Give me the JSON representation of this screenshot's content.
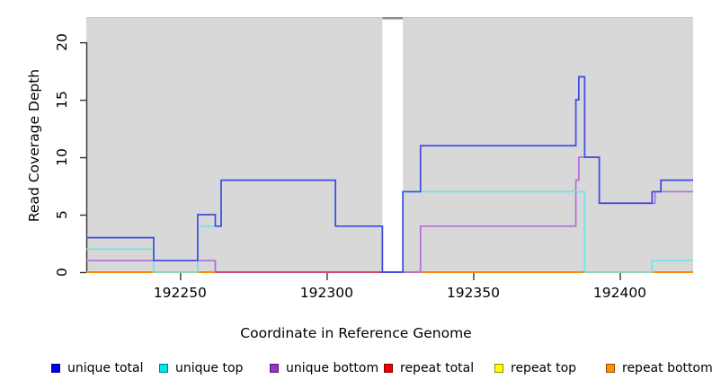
{
  "chart_data": {
    "type": "line",
    "step": true,
    "xlabel": "Coordinate in Reference Genome",
    "ylabel": "Read Coverage Depth",
    "xlim": [
      192218,
      192425
    ],
    "ylim": [
      0,
      22.2
    ],
    "x_ticks": {
      "values": [
        192250,
        192300,
        192350,
        192400
      ],
      "labels": [
        "192250",
        "192300",
        "192350",
        "192400"
      ]
    },
    "y_ticks": {
      "values": [
        0,
        5,
        10,
        15,
        20
      ],
      "labels": [
        "0",
        "5",
        "10",
        "15",
        "20"
      ]
    },
    "plot_bg": "#D8D8D8",
    "top_border_color": "#C8C8C8",
    "axis_color": "#333333",
    "gap_band": {
      "from": 192319,
      "to": 192326,
      "color": "#FFFFFF",
      "notch_color": "#8E8E8E"
    },
    "series": [
      {
        "name": "unique total",
        "legend_color": "#0000EE",
        "line_color": "#3D4BE0",
        "steps": [
          [
            192218,
            3
          ],
          [
            192241,
            1
          ],
          [
            192256,
            5
          ],
          [
            192262,
            4
          ],
          [
            192264,
            8
          ],
          [
            192303,
            4
          ],
          [
            192319,
            0
          ],
          [
            192326,
            7
          ],
          [
            192332,
            11
          ],
          [
            192385,
            15
          ],
          [
            192386,
            17
          ],
          [
            192388,
            10
          ],
          [
            192393,
            6
          ],
          [
            192411,
            7
          ],
          [
            192414,
            8
          ],
          [
            192425,
            8
          ]
        ]
      },
      {
        "name": "unique top",
        "legend_color": "#00E5EE",
        "line_color": "#6FE3EA",
        "steps": [
          [
            192218,
            2
          ],
          [
            192241,
            0
          ],
          [
            192256,
            4
          ],
          [
            192264,
            8
          ],
          [
            192303,
            4
          ],
          [
            192319,
            0
          ],
          [
            192326,
            7
          ],
          [
            192388,
            0
          ],
          [
            192411,
            1
          ],
          [
            192425,
            1
          ]
        ]
      },
      {
        "name": "unique bottom",
        "legend_color": "#9932CC",
        "line_color": "#B16EDC",
        "steps": [
          [
            192218,
            1
          ],
          [
            192262,
            0
          ],
          [
            192332,
            4
          ],
          [
            192385,
            8
          ],
          [
            192386,
            10
          ],
          [
            192393,
            6
          ],
          [
            192412,
            7
          ],
          [
            192425,
            7
          ]
        ]
      },
      {
        "name": "repeat total",
        "legend_color": "#EE0000",
        "line_color": "#DD2222",
        "steps": [
          [
            192218,
            0
          ],
          [
            192425,
            0
          ]
        ]
      },
      {
        "name": "repeat top",
        "legend_color": "#FFFF00",
        "line_color": "#EEDD00",
        "steps": [
          [
            192218,
            0
          ],
          [
            192425,
            0
          ]
        ]
      },
      {
        "name": "repeat bottom",
        "legend_color": "#FF9100",
        "line_color": "#FF9100",
        "steps": [
          [
            192218,
            0
          ],
          [
            192425,
            0
          ]
        ]
      }
    ],
    "draw_order": [
      4,
      3,
      5,
      2,
      1
    ],
    "top_series": 0,
    "baseline_overlays": [
      {
        "from": 192241,
        "to": 192256,
        "color": "#8FD9B0"
      },
      {
        "from": 192262,
        "to": 192326,
        "color": "#D2406E"
      },
      {
        "from": 192388,
        "to": 192411,
        "color": "#8FD9B0"
      }
    ],
    "legend": [
      {
        "label": "unique total",
        "color": "#0000EE"
      },
      {
        "label": "unique top",
        "color": "#00E5EE"
      },
      {
        "label": "unique bottom",
        "color": "#9932CC"
      },
      {
        "label": "repeat total",
        "color": "#EE0000"
      },
      {
        "label": "repeat top",
        "color": "#FFFF00"
      },
      {
        "label": "repeat bottom",
        "color": "#FF9100"
      }
    ]
  }
}
